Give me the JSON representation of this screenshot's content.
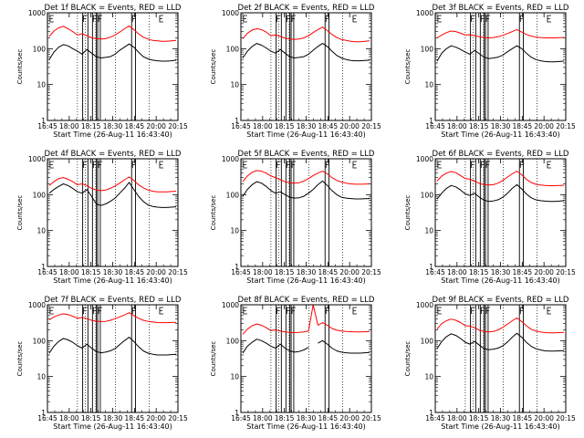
{
  "chart_data": [
    {
      "type": "line",
      "title": "Det 1f BLACK = Events, RED = LLD",
      "xlabel": "Start Time (26-Aug-11 16:43:40)",
      "ylabel": "Counts/sec",
      "yscale": "log",
      "ylim": [
        1,
        1000
      ],
      "x_ticks": [
        "16:45",
        "18:00",
        "18:15",
        "18:30",
        "18:45",
        "20:00",
        "20:15"
      ],
      "y_ticks": [
        "1",
        "10",
        "100",
        "1000"
      ],
      "series": [
        {
          "color": "#ff0000",
          "values": [
            220,
            310,
            380,
            420,
            360,
            300,
            240,
            260,
            230,
            200,
            190,
            185,
            190,
            210,
            240,
            290,
            360,
            430,
            340,
            260,
            210,
            185,
            170,
            165,
            160,
            160,
            165,
            170
          ]
        },
        {
          "color": "#000000",
          "values": [
            50,
            80,
            110,
            130,
            120,
            100,
            85,
            70,
            95,
            75,
            60,
            55,
            57,
            60,
            70,
            90,
            110,
            135,
            110,
            80,
            60,
            52,
            48,
            46,
            45,
            45,
            46,
            48
          ]
        }
      ]
    },
    {
      "type": "line",
      "title": "Det 2f BLACK = Events, RED = LLD",
      "xlabel": "Start Time (26-Aug-11 16:43:40)",
      "ylabel": "Counts/sec",
      "yscale": "log",
      "ylim": [
        1,
        1000
      ],
      "x_ticks": [
        "16:45",
        "18:00",
        "18:15",
        "18:30",
        "18:45",
        "20:00",
        "20:15"
      ],
      "y_ticks": [
        "1",
        "10",
        "100",
        "1000"
      ],
      "series": [
        {
          "color": "#ff0000",
          "values": [
            190,
            270,
            330,
            360,
            340,
            290,
            230,
            240,
            220,
            195,
            185,
            180,
            185,
            200,
            230,
            280,
            340,
            400,
            320,
            250,
            205,
            180,
            170,
            160,
            155,
            155,
            160,
            165
          ]
        },
        {
          "color": "#000000",
          "values": [
            55,
            85,
            115,
            140,
            125,
            105,
            85,
            75,
            95,
            75,
            60,
            55,
            57,
            60,
            70,
            90,
            115,
            140,
            115,
            85,
            65,
            55,
            50,
            47,
            46,
            46,
            47,
            48
          ]
        }
      ]
    },
    {
      "type": "line",
      "title": "Det 3f BLACK = Events, RED = LLD",
      "xlabel": "Start Time (26-Aug-11 16:43:40)",
      "ylabel": "Counts/sec",
      "yscale": "log",
      "ylim": [
        1,
        1000
      ],
      "x_ticks": [
        "16:45",
        "18:00",
        "18:15",
        "18:30",
        "18:45",
        "20:00",
        "20:15"
      ],
      "y_ticks": [
        "1",
        "10",
        "100",
        "1000"
      ],
      "series": [
        {
          "color": "#ff0000",
          "values": [
            200,
            240,
            280,
            310,
            300,
            270,
            240,
            245,
            230,
            215,
            205,
            200,
            205,
            215,
            235,
            265,
            300,
            340,
            290,
            250,
            225,
            210,
            205,
            200,
            200,
            200,
            202,
            205
          ]
        },
        {
          "color": "#000000",
          "values": [
            45,
            75,
            100,
            120,
            110,
            95,
            80,
            70,
            90,
            72,
            58,
            53,
            55,
            58,
            66,
            82,
            100,
            120,
            100,
            75,
            58,
            50,
            46,
            44,
            43,
            43,
            44,
            45
          ]
        }
      ]
    },
    {
      "type": "line",
      "title": "Det 4f BLACK = Events, RED = LLD",
      "xlabel": "Start Time (26-Aug-11 16:43:40)",
      "ylabel": "Counts/sec",
      "yscale": "log",
      "ylim": [
        1,
        1000
      ],
      "x_ticks": [
        "16:45",
        "18:00",
        "18:15",
        "18:30",
        "18:45",
        "20:00",
        "20:15"
      ],
      "y_ticks": [
        "1",
        "10",
        "100",
        "1000"
      ],
      "series": [
        {
          "color": "#ff0000",
          "values": [
            180,
            230,
            280,
            300,
            270,
            230,
            190,
            200,
            180,
            150,
            135,
            130,
            135,
            150,
            175,
            210,
            260,
            310,
            250,
            190,
            155,
            135,
            125,
            120,
            120,
            120,
            122,
            125
          ]
        },
        {
          "color": "#000000",
          "values": [
            110,
            140,
            170,
            200,
            180,
            150,
            120,
            110,
            140,
            90,
            55,
            50,
            55,
            65,
            80,
            110,
            150,
            220,
            140,
            90,
            65,
            52,
            47,
            45,
            44,
            44,
            45,
            46
          ]
        }
      ]
    },
    {
      "type": "line",
      "title": "Det 5f BLACK = Events, RED = LLD",
      "xlabel": "Start Time (26-Aug-11 16:43:40)",
      "ylabel": "Counts/sec",
      "yscale": "log",
      "ylim": [
        1,
        1000
      ],
      "x_ticks": [
        "16:45",
        "18:00",
        "18:15",
        "18:30",
        "18:45",
        "20:00",
        "20:15"
      ],
      "y_ticks": [
        "1",
        "10",
        "100",
        "1000"
      ],
      "series": [
        {
          "color": "#ff0000",
          "values": [
            230,
            330,
            420,
            470,
            450,
            400,
            330,
            300,
            260,
            230,
            215,
            210,
            215,
            240,
            280,
            340,
            400,
            450,
            380,
            300,
            250,
            225,
            210,
            200,
            195,
            195,
            198,
            200
          ]
        },
        {
          "color": "#000000",
          "values": [
            90,
            140,
            190,
            230,
            210,
            170,
            130,
            110,
            120,
            100,
            85,
            80,
            82,
            90,
            110,
            140,
            190,
            240,
            180,
            130,
            100,
            85,
            80,
            78,
            76,
            76,
            77,
            78
          ]
        }
      ]
    },
    {
      "type": "line",
      "title": "Det 6f BLACK = Events, RED = LLD",
      "xlabel": "Start Time (26-Aug-11 16:43:40)",
      "ylabel": "Counts/sec",
      "yscale": "log",
      "ylim": [
        1,
        1000
      ],
      "x_ticks": [
        "16:45",
        "18:00",
        "18:15",
        "18:30",
        "18:45",
        "20:00",
        "20:15"
      ],
      "y_ticks": [
        "1",
        "10",
        "100",
        "1000"
      ],
      "series": [
        {
          "color": "#ff0000",
          "values": [
            240,
            330,
            400,
            440,
            410,
            340,
            280,
            270,
            240,
            205,
            190,
            185,
            190,
            210,
            250,
            310,
            380,
            450,
            360,
            270,
            220,
            195,
            185,
            180,
            178,
            178,
            180,
            182
          ]
        },
        {
          "color": "#000000",
          "values": [
            75,
            110,
            150,
            180,
            165,
            135,
            105,
            95,
            110,
            85,
            70,
            65,
            67,
            72,
            85,
            110,
            150,
            190,
            145,
            105,
            82,
            72,
            68,
            66,
            65,
            65,
            66,
            68
          ]
        }
      ]
    },
    {
      "type": "line",
      "title": "Det 7f BLACK = Events, RED = LLD",
      "xlabel": "Start Time (26-Aug-11 16:43:40)",
      "ylabel": "Counts/sec",
      "yscale": "log",
      "ylim": [
        1,
        1000
      ],
      "x_ticks": [
        "16:45",
        "18:00",
        "18:15",
        "18:30",
        "18:45",
        "20:00",
        "20:15"
      ],
      "y_ticks": [
        "1",
        "10",
        "100",
        "1000"
      ],
      "series": [
        {
          "color": "#ff0000",
          "values": [
            380,
            460,
            520,
            560,
            530,
            480,
            420,
            440,
            410,
            370,
            350,
            340,
            345,
            370,
            410,
            460,
            520,
            600,
            500,
            420,
            370,
            345,
            330,
            320,
            318,
            318,
            322,
            325
          ]
        },
        {
          "color": "#000000",
          "values": [
            45,
            70,
            95,
            115,
            105,
            90,
            72,
            62,
            80,
            62,
            50,
            46,
            48,
            52,
            60,
            78,
            100,
            125,
            95,
            68,
            52,
            45,
            42,
            40,
            40,
            40,
            41,
            42
          ]
        }
      ]
    },
    {
      "type": "line",
      "title": "Det 8f BLACK = Events, RED = LLD",
      "xlabel": "Start Time (26-Aug-11 16:43:40)",
      "ylabel": "Counts/sec",
      "yscale": "log",
      "ylim": [
        1,
        1000
      ],
      "x_ticks": [
        "16:45",
        "18:00",
        "18:15",
        "18:30",
        "18:45",
        "20:00",
        "20:15"
      ],
      "y_ticks": [
        "1",
        "10",
        "100",
        "1000"
      ],
      "series": [
        {
          "color": "#ff0000",
          "values": [
            150,
            210,
            260,
            290,
            270,
            230,
            190,
            200,
            185,
            175,
            170,
            168,
            170,
            175,
            185,
            1000,
            270,
            320,
            270,
            220,
            195,
            185,
            180,
            178,
            176,
            176,
            178,
            180
          ]
        },
        {
          "color": "#000000",
          "values": [
            45,
            70,
            90,
            110,
            100,
            85,
            70,
            62,
            80,
            62,
            52,
            48,
            50,
            55,
            65,
            null,
            85,
            100,
            80,
            62,
            52,
            48,
            46,
            45,
            45,
            45,
            46,
            47
          ]
        }
      ]
    },
    {
      "type": "line",
      "title": "Det 9f BLACK = Events, RED = LLD",
      "xlabel": "Start Time (26-Aug-11 16:43:40)",
      "ylabel": "Counts/sec",
      "yscale": "log",
      "ylim": [
        1,
        1000
      ],
      "x_ticks": [
        "16:45",
        "18:00",
        "18:15",
        "18:30",
        "18:45",
        "20:00",
        "20:15"
      ],
      "y_ticks": [
        "1",
        "10",
        "100",
        "1000"
      ],
      "series": [
        {
          "color": "#ff0000",
          "values": [
            210,
            300,
            360,
            400,
            370,
            320,
            260,
            255,
            230,
            195,
            180,
            175,
            180,
            200,
            235,
            290,
            360,
            430,
            340,
            260,
            210,
            185,
            175,
            168,
            165,
            165,
            168,
            170
          ]
        },
        {
          "color": "#000000",
          "values": [
            60,
            95,
            130,
            155,
            140,
            115,
            90,
            80,
            95,
            75,
            60,
            56,
            58,
            62,
            72,
            92,
            125,
            160,
            125,
            90,
            70,
            60,
            55,
            52,
            51,
            51,
            52,
            53
          ]
        }
      ]
    }
  ]
}
